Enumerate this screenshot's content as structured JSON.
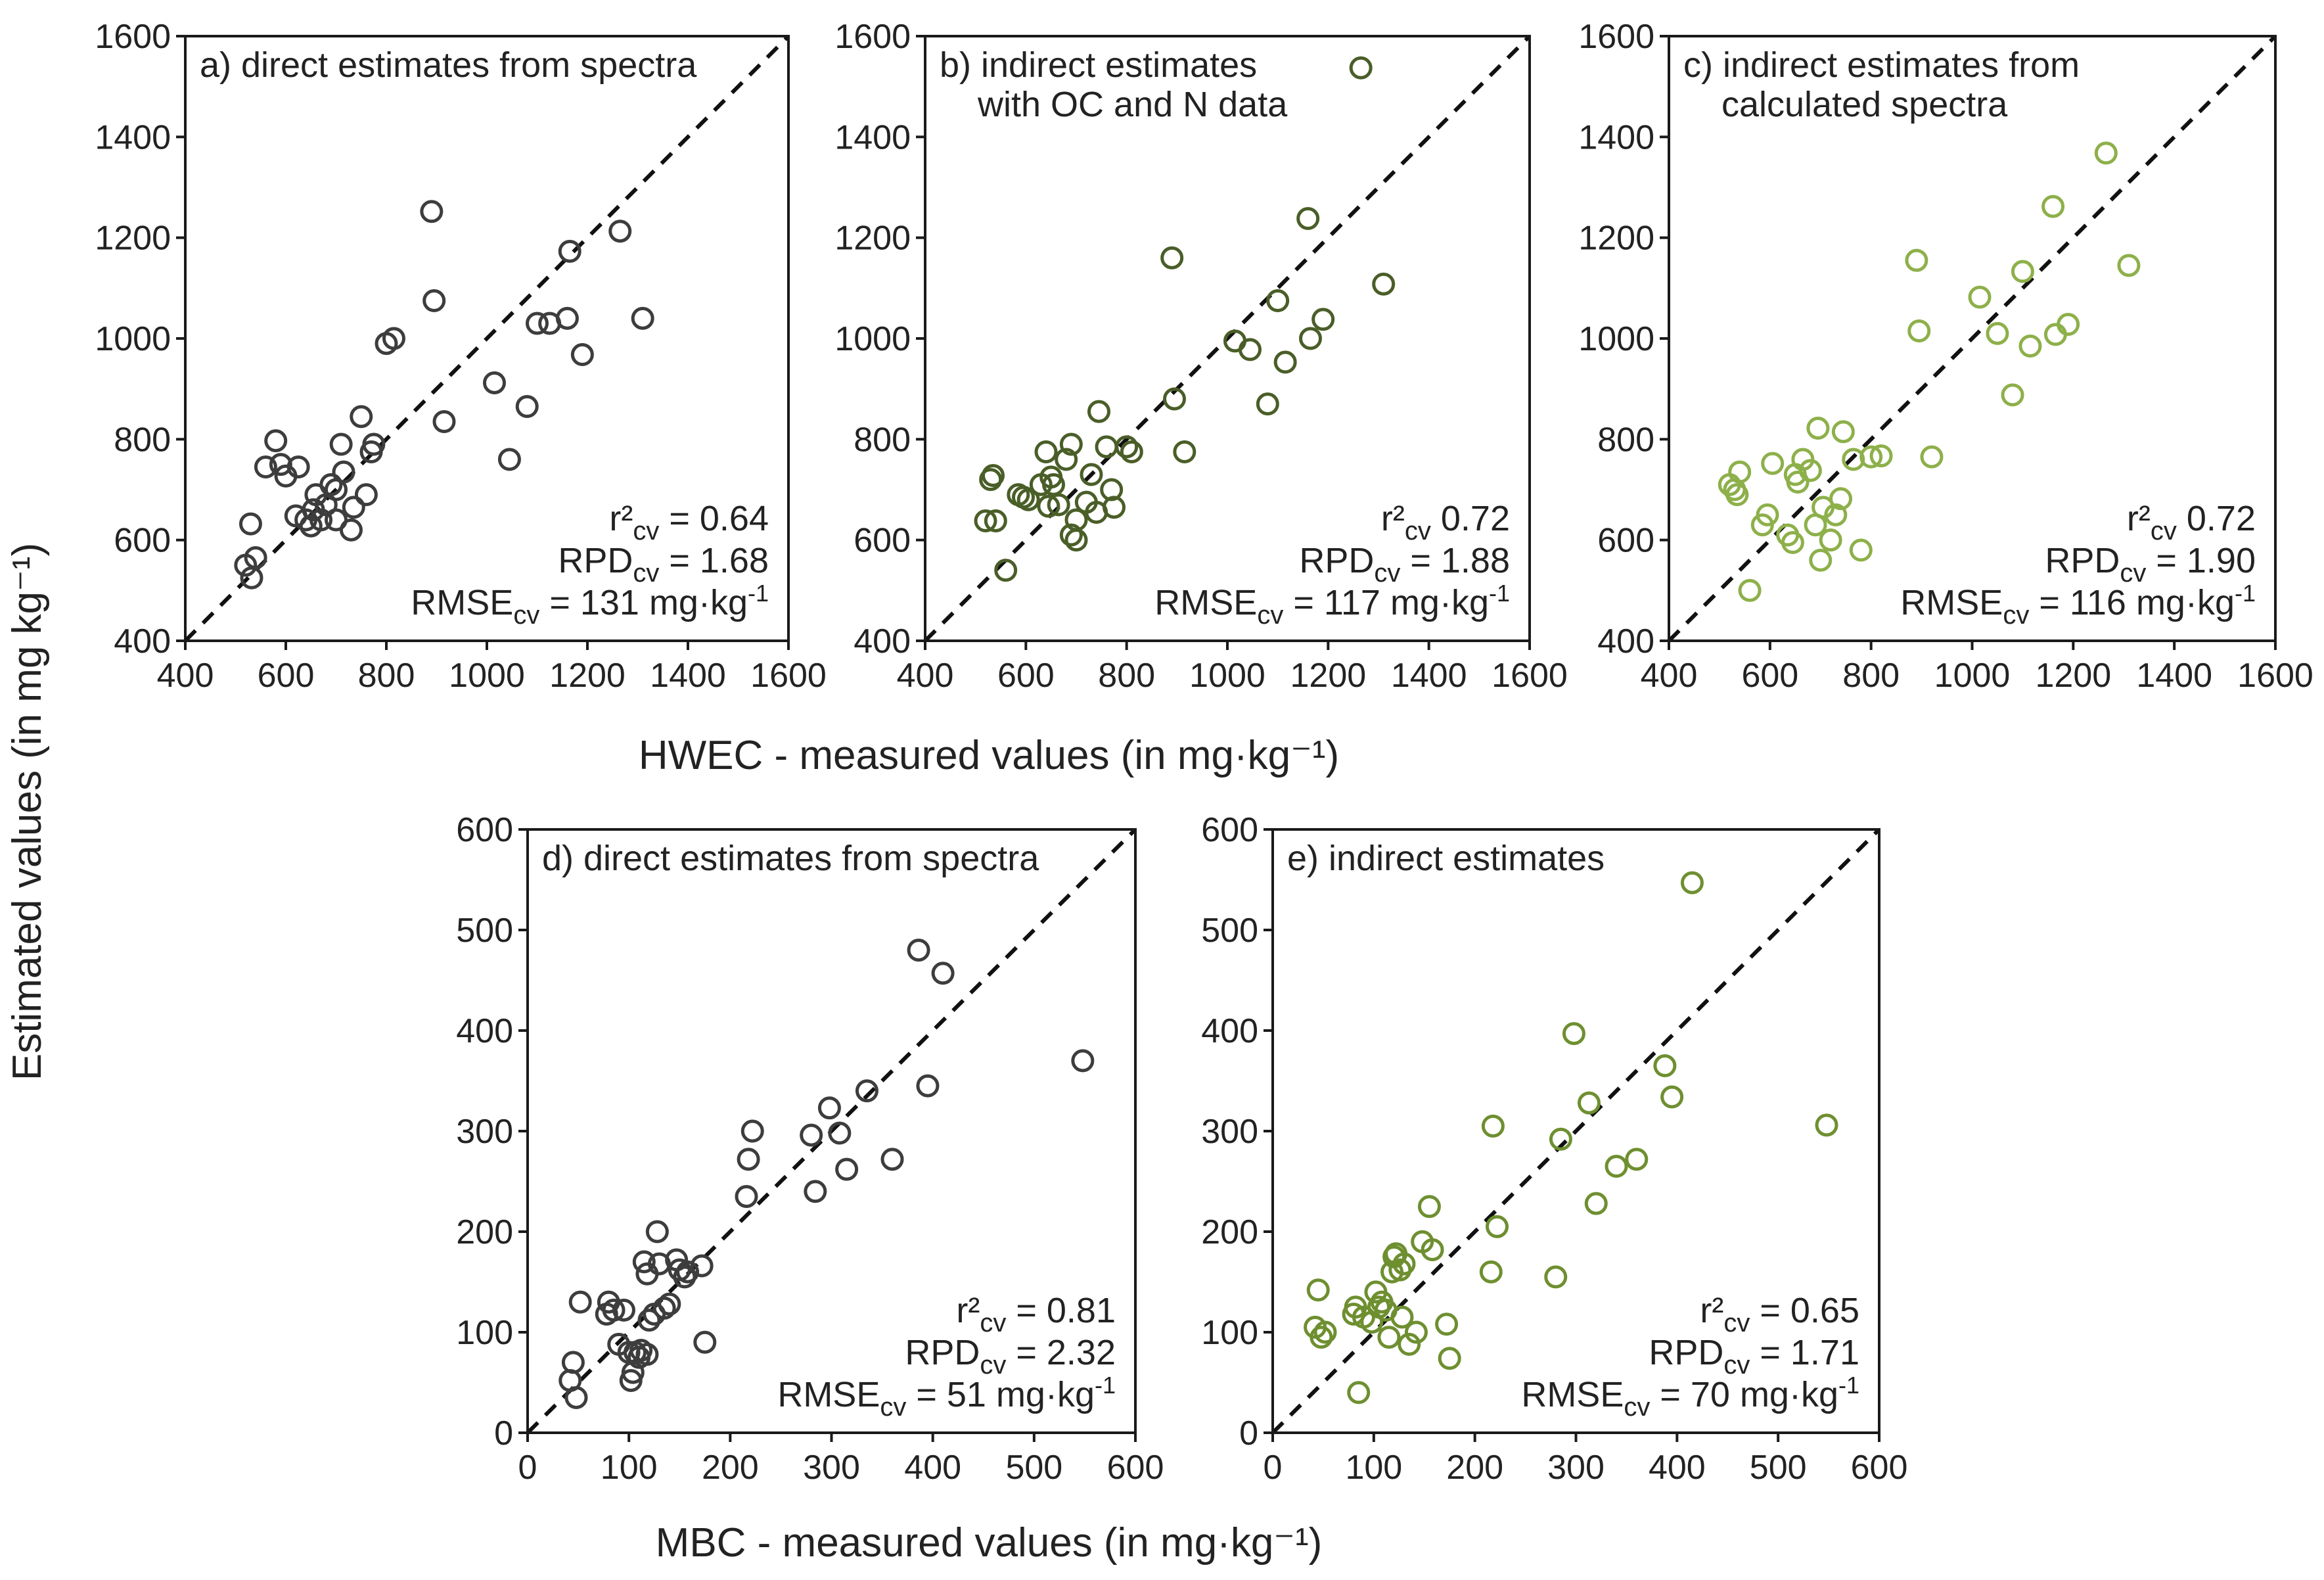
{
  "figure": {
    "y_axis_title": "Estimated values (in mg kg⁻¹)",
    "x_axis_title_top": "HWEC - measured values (in mg·kg⁻¹)",
    "x_axis_title_bottom": "MBC - measured values (in mg·kg⁻¹)"
  },
  "chart_data": [
    {
      "id": "a",
      "type": "scatter",
      "title_lines": [
        "a) direct estimates from spectra"
      ],
      "xlim": [
        400,
        1600
      ],
      "ylim": [
        400,
        1600
      ],
      "xticks": [
        400,
        600,
        800,
        1000,
        1200,
        1400,
        1600
      ],
      "yticks": [
        400,
        600,
        800,
        1000,
        1200,
        1400,
        1600
      ],
      "color": "#3d3d3d",
      "stats": {
        "r2_label": "r²",
        "r2_sub": "cv",
        "r2_value": "= 0.64",
        "rpd_label": "RPD",
        "rpd_sub": "cv",
        "rpd_value": "= 1.68",
        "rmse_label": "RMSE",
        "rmse_sub": "cv",
        "rmse_value": "= 131 mg·kg",
        "rmse_exp": "-1"
      },
      "points": [
        [
          520,
          550
        ],
        [
          530,
          632
        ],
        [
          532,
          525
        ],
        [
          540,
          565
        ],
        [
          560,
          745
        ],
        [
          580,
          797
        ],
        [
          590,
          750
        ],
        [
          600,
          727
        ],
        [
          620,
          648
        ],
        [
          625,
          745
        ],
        [
          640,
          640
        ],
        [
          650,
          628
        ],
        [
          655,
          660
        ],
        [
          660,
          690
        ],
        [
          670,
          640
        ],
        [
          680,
          670
        ],
        [
          690,
          710
        ],
        [
          700,
          640
        ],
        [
          700,
          700
        ],
        [
          710,
          790
        ],
        [
          715,
          735
        ],
        [
          730,
          620
        ],
        [
          735,
          665
        ],
        [
          750,
          845
        ],
        [
          760,
          690
        ],
        [
          770,
          775
        ],
        [
          775,
          790
        ],
        [
          800,
          990
        ],
        [
          815,
          1000
        ],
        [
          890,
          1252
        ],
        [
          895,
          1075
        ],
        [
          915,
          835
        ],
        [
          1015,
          912
        ],
        [
          1045,
          760
        ],
        [
          1080,
          865
        ],
        [
          1100,
          1030
        ],
        [
          1125,
          1030
        ],
        [
          1160,
          1040
        ],
        [
          1165,
          1173
        ],
        [
          1190,
          968
        ],
        [
          1265,
          1213
        ],
        [
          1310,
          1040
        ]
      ]
    },
    {
      "id": "b",
      "type": "scatter",
      "title_lines": [
        "b) indirect estimates",
        "with OC and N data"
      ],
      "xlim": [
        400,
        1600
      ],
      "ylim": [
        400,
        1600
      ],
      "xticks": [
        400,
        600,
        800,
        1000,
        1200,
        1400,
        1600
      ],
      "yticks": [
        400,
        600,
        800,
        1000,
        1200,
        1400,
        1600
      ],
      "color": "#4a5e28",
      "stats": {
        "r2_label": "r²",
        "r2_sub": "cv",
        "r2_value": "0.72",
        "rpd_label": "RPD",
        "rpd_sub": "cv",
        "rpd_value": "= 1.88",
        "rmse_label": "RMSE",
        "rmse_sub": "cv",
        "rmse_value": "= 117 mg·kg",
        "rmse_exp": "-1"
      },
      "points": [
        [
          520,
          638
        ],
        [
          530,
          720
        ],
        [
          535,
          728
        ],
        [
          540,
          638
        ],
        [
          560,
          540
        ],
        [
          585,
          690
        ],
        [
          595,
          685
        ],
        [
          605,
          680
        ],
        [
          630,
          710
        ],
        [
          640,
          775
        ],
        [
          645,
          667
        ],
        [
          650,
          725
        ],
        [
          655,
          710
        ],
        [
          665,
          670
        ],
        [
          680,
          760
        ],
        [
          690,
          790
        ],
        [
          690,
          610
        ],
        [
          700,
          600
        ],
        [
          700,
          640
        ],
        [
          720,
          675
        ],
        [
          730,
          730
        ],
        [
          740,
          655
        ],
        [
          745,
          855
        ],
        [
          760,
          785
        ],
        [
          770,
          700
        ],
        [
          775,
          665
        ],
        [
          800,
          785
        ],
        [
          810,
          775
        ],
        [
          890,
          1160
        ],
        [
          895,
          880
        ],
        [
          915,
          775
        ],
        [
          1015,
          995
        ],
        [
          1045,
          978
        ],
        [
          1080,
          870
        ],
        [
          1100,
          1075
        ],
        [
          1115,
          953
        ],
        [
          1160,
          1238
        ],
        [
          1165,
          1000
        ],
        [
          1190,
          1038
        ],
        [
          1265,
          1537
        ],
        [
          1310,
          1108
        ]
      ]
    },
    {
      "id": "c",
      "type": "scatter",
      "title_lines": [
        "c) indirect estimates from",
        "calculated spectra"
      ],
      "xlim": [
        400,
        1600
      ],
      "ylim": [
        400,
        1600
      ],
      "xticks": [
        400,
        600,
        800,
        1000,
        1200,
        1400,
        1600
      ],
      "yticks": [
        400,
        600,
        800,
        1000,
        1200,
        1400,
        1600
      ],
      "color": "#8db04a",
      "stats": {
        "r2_label": "r²",
        "r2_sub": "cv",
        "r2_value": "0.72",
        "rpd_label": "RPD",
        "rpd_sub": "cv",
        "rpd_value": "= 1.90",
        "rmse_label": "RMSE",
        "rmse_sub": "cv",
        "rmse_value": "= 116 mg·kg",
        "rmse_exp": "-1"
      },
      "points": [
        [
          520,
          710
        ],
        [
          530,
          700
        ],
        [
          535,
          690
        ],
        [
          540,
          735
        ],
        [
          560,
          500
        ],
        [
          585,
          630
        ],
        [
          595,
          650
        ],
        [
          605,
          752
        ],
        [
          635,
          610
        ],
        [
          645,
          595
        ],
        [
          650,
          730
        ],
        [
          655,
          715
        ],
        [
          665,
          760
        ],
        [
          680,
          738
        ],
        [
          690,
          630
        ],
        [
          695,
          822
        ],
        [
          700,
          560
        ],
        [
          705,
          665
        ],
        [
          720,
          600
        ],
        [
          730,
          650
        ],
        [
          740,
          682
        ],
        [
          745,
          815
        ],
        [
          765,
          760
        ],
        [
          780,
          580
        ],
        [
          800,
          765
        ],
        [
          820,
          767
        ],
        [
          890,
          1155
        ],
        [
          895,
          1015
        ],
        [
          920,
          765
        ],
        [
          1015,
          1082
        ],
        [
          1050,
          1010
        ],
        [
          1080,
          888
        ],
        [
          1100,
          1133
        ],
        [
          1115,
          985
        ],
        [
          1160,
          1262
        ],
        [
          1165,
          1008
        ],
        [
          1190,
          1028
        ],
        [
          1265,
          1368
        ],
        [
          1310,
          1145
        ]
      ]
    },
    {
      "id": "d",
      "type": "scatter",
      "title_lines": [
        "d) direct estimates from spectra"
      ],
      "xlim": [
        0,
        600
      ],
      "ylim": [
        0,
        600
      ],
      "xticks": [
        0,
        100,
        200,
        300,
        400,
        500,
        600
      ],
      "yticks": [
        0,
        100,
        200,
        300,
        400,
        500,
        600
      ],
      "color": "#3d3d3d",
      "stats": {
        "r2_label": "r²",
        "r2_sub": "cv",
        "r2_value": "= 0.81",
        "rpd_label": "RPD",
        "rpd_sub": "cv",
        "rpd_value": "= 2.32",
        "rmse_label": "RMSE",
        "rmse_sub": "cv",
        "rmse_value": "= 51 mg·kg",
        "rmse_exp": "-1"
      },
      "points": [
        [
          42,
          52
        ],
        [
          45,
          70
        ],
        [
          48,
          35
        ],
        [
          52,
          130
        ],
        [
          78,
          118
        ],
        [
          80,
          130
        ],
        [
          85,
          122
        ],
        [
          90,
          88
        ],
        [
          95,
          122
        ],
        [
          100,
          80
        ],
        [
          102,
          52
        ],
        [
          104,
          60
        ],
        [
          106,
          80
        ],
        [
          110,
          75
        ],
        [
          112,
          82
        ],
        [
          115,
          170
        ],
        [
          118,
          78
        ],
        [
          118,
          158
        ],
        [
          120,
          112
        ],
        [
          125,
          118
        ],
        [
          128,
          200
        ],
        [
          130,
          168
        ],
        [
          135,
          124
        ],
        [
          140,
          128
        ],
        [
          147,
          172
        ],
        [
          150,
          162
        ],
        [
          155,
          155
        ],
        [
          158,
          160
        ],
        [
          172,
          166
        ],
        [
          175,
          90
        ],
        [
          216,
          235
        ],
        [
          218,
          272
        ],
        [
          222,
          300
        ],
        [
          280,
          296
        ],
        [
          284,
          240
        ],
        [
          298,
          323
        ],
        [
          308,
          298
        ],
        [
          315,
          262
        ],
        [
          335,
          340
        ],
        [
          360,
          272
        ],
        [
          386,
          480
        ],
        [
          395,
          345
        ],
        [
          410,
          457
        ],
        [
          548,
          370
        ]
      ]
    },
    {
      "id": "e",
      "type": "scatter",
      "title_lines": [
        "e) indirect estimates"
      ],
      "xlim": [
        0,
        600
      ],
      "ylim": [
        0,
        600
      ],
      "xticks": [
        0,
        100,
        200,
        300,
        400,
        500,
        600
      ],
      "yticks": [
        0,
        100,
        200,
        300,
        400,
        500,
        600
      ],
      "color": "#6e8f30",
      "stats": {
        "r2_label": "r²",
        "r2_sub": "cv",
        "r2_value": "= 0.65",
        "rpd_label": "RPD",
        "rpd_sub": "cv",
        "rpd_value": "= 1.71",
        "rmse_label": "RMSE",
        "rmse_sub": "cv",
        "rmse_value": "= 70 mg·kg",
        "rmse_exp": "-1"
      },
      "points": [
        [
          42,
          105
        ],
        [
          45,
          142
        ],
        [
          48,
          95
        ],
        [
          52,
          100
        ],
        [
          80,
          118
        ],
        [
          82,
          125
        ],
        [
          85,
          40
        ],
        [
          90,
          115
        ],
        [
          98,
          110
        ],
        [
          102,
          140
        ],
        [
          105,
          125
        ],
        [
          108,
          130
        ],
        [
          112,
          122
        ],
        [
          115,
          95
        ],
        [
          118,
          160
        ],
        [
          120,
          175
        ],
        [
          122,
          178
        ],
        [
          126,
          162
        ],
        [
          128,
          115
        ],
        [
          130,
          168
        ],
        [
          135,
          88
        ],
        [
          142,
          100
        ],
        [
          148,
          190
        ],
        [
          155,
          225
        ],
        [
          158,
          182
        ],
        [
          172,
          108
        ],
        [
          175,
          74
        ],
        [
          216,
          160
        ],
        [
          218,
          305
        ],
        [
          222,
          205
        ],
        [
          280,
          155
        ],
        [
          285,
          292
        ],
        [
          298,
          397
        ],
        [
          313,
          328
        ],
        [
          320,
          228
        ],
        [
          340,
          265
        ],
        [
          360,
          272
        ],
        [
          388,
          365
        ],
        [
          395,
          334
        ],
        [
          415,
          547
        ],
        [
          548,
          306
        ]
      ]
    }
  ]
}
